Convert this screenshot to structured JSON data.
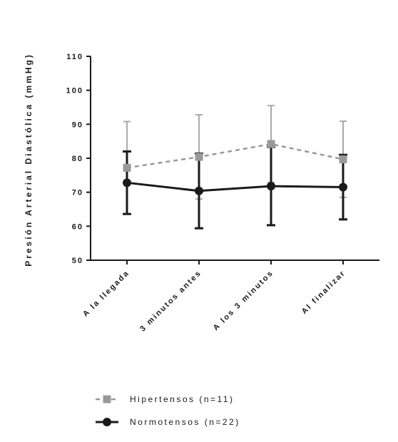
{
  "chart_data": {
    "type": "line",
    "xlabel": "",
    "ylabel": "Presión Arterial Diastólica (mmHg)",
    "ylim": [
      50,
      110
    ],
    "yticks": [
      50,
      60,
      70,
      80,
      90,
      100,
      110
    ],
    "categories": [
      "A la llegada",
      "3 minutos antes",
      "A los 3 minutos",
      "Al finalizar"
    ],
    "series": [
      {
        "name": "Hipertensos (n=11)",
        "values": [
          77.2,
          80.4,
          84.2,
          79.7
        ],
        "error": [
          13.6,
          12.4,
          11.3,
          11.2
        ],
        "color": "#999999",
        "line_style": "dashed",
        "marker": "square"
      },
      {
        "name": "Normotensos (n=22)",
        "values": [
          72.8,
          70.4,
          71.8,
          71.5
        ],
        "error": [
          9.2,
          11.0,
          11.5,
          9.5
        ],
        "color": "#1a1a1a",
        "line_style": "solid",
        "marker": "circle"
      }
    ],
    "legend": "bottom",
    "grid": false
  }
}
